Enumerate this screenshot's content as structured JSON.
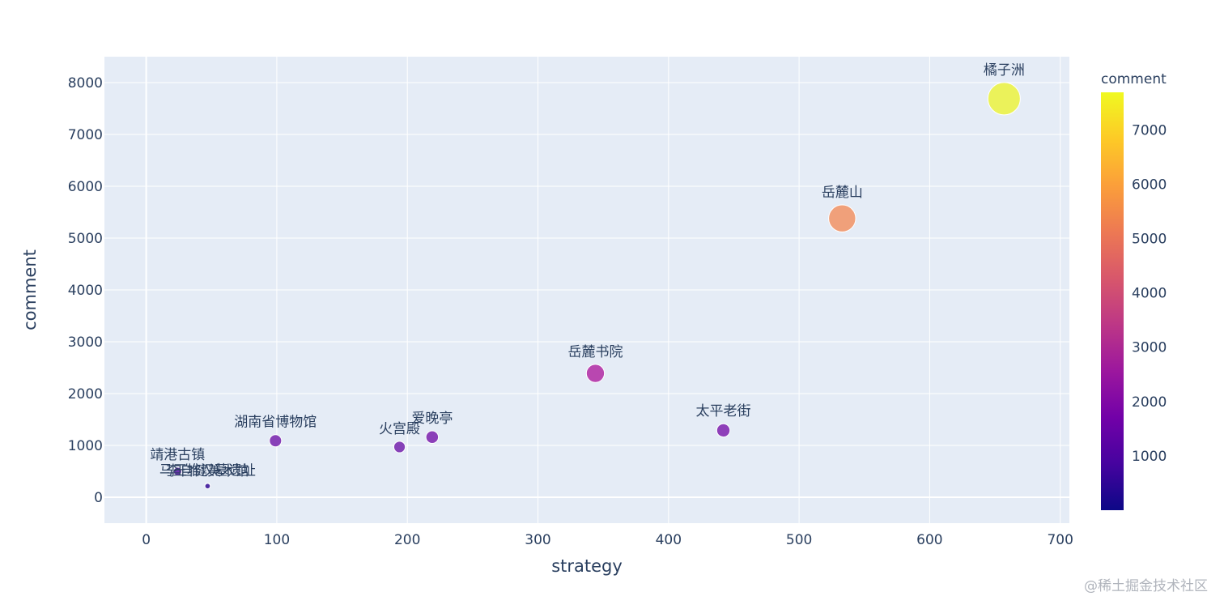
{
  "chart_data": {
    "type": "scatter",
    "xlabel": "strategy",
    "ylabel": "comment",
    "xlim": [
      -32,
      707
    ],
    "ylim": [
      -500,
      8500
    ],
    "x_ticks": [
      0,
      100,
      200,
      300,
      400,
      500,
      600,
      700
    ],
    "y_ticks": [
      0,
      1000,
      2000,
      3000,
      4000,
      5000,
      6000,
      7000,
      8000
    ],
    "points": [
      {
        "label": "橘子洲",
        "x": 657,
        "y": 7690,
        "color": "#ebf25a"
      },
      {
        "label": "岳麓山",
        "x": 533,
        "y": 5380,
        "color": "#f0a07a"
      },
      {
        "label": "岳麓书院",
        "x": 344,
        "y": 2390,
        "color": "#b947b0"
      },
      {
        "label": "太平老街",
        "x": 442,
        "y": 1290,
        "color": "#8e3fb9"
      },
      {
        "label": "湖南省博物馆",
        "x": 99,
        "y": 1090,
        "color": "#8840b8"
      },
      {
        "label": "爱晚亭",
        "x": 219,
        "y": 1160,
        "color": "#8b3fb8"
      },
      {
        "label": "火宫殿",
        "x": 194,
        "y": 970,
        "color": "#8641b8"
      },
      {
        "label": "靖港古镇",
        "x": 24,
        "y": 500,
        "color": "#6a33b0"
      },
      {
        "label": "马王堆汉墓遗址",
        "x": 47,
        "y": 220,
        "color": "#5a2fa8"
      },
      {
        "label": "李自健美术馆",
        "x": 47,
        "y": 215,
        "color": "#4e2da4"
      }
    ],
    "colorbar": {
      "title": "comment",
      "range": [
        0,
        7690
      ],
      "ticks": [
        1000,
        2000,
        3000,
        4000,
        5000,
        6000,
        7000
      ],
      "colorscale": [
        "#0d0887",
        "#46039f",
        "#7201a8",
        "#9c179e",
        "#bd3786",
        "#d8576b",
        "#ed7953",
        "#fb9f3a",
        "#fdca26",
        "#f0f921"
      ]
    }
  },
  "watermark": "@稀土掘金技术社区"
}
